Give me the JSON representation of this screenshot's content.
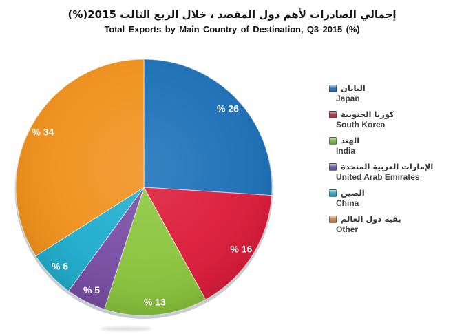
{
  "page": {
    "background": "#FFFFFF"
  },
  "title": {
    "ar": "إجمالي الصادرات لأهم دول المقصد ، خلال الربع الثالث 2015(%)",
    "en": "Total Exports by Main Country of Destination, Q3  2015 (%)"
  },
  "chart_data": {
    "type": "pie",
    "title": "Total Exports by Main Country of Destination, Q3 2015 (%)",
    "title_ar": "إجمالي الصادرات لأهم دول المقصد ، خلال الربع الثالث 2015(%)",
    "categories": [
      "Japan",
      "South Korea",
      "India",
      "United Arab Emirates",
      "China",
      "Other"
    ],
    "categories_ar": [
      "اليابان",
      "كوريا الجنوبية",
      "الهند",
      "الإمارات العربية المتحدة",
      "الصين",
      "بقية دول العالم"
    ],
    "values": [
      26,
      16,
      13,
      5,
      6,
      34
    ],
    "unit": "%",
    "value_labels": [
      "% 26",
      "% 16",
      "% 13",
      "% 5",
      "% 6",
      "% 34"
    ],
    "label_format": "% {value}",
    "value_label_color": "#FFFFFF",
    "colors": [
      "#1E71B8",
      "#DC1E3C",
      "#8CC63F",
      "#7A4FA5",
      "#22AECE",
      "#F0921E"
    ],
    "swatch_colors": [
      "#2F74B4",
      "#AE4050",
      "#7FBA58",
      "#6E66AE",
      "#3FA8C5",
      "#C48A54"
    ],
    "start_angle_deg": 0,
    "direction": "clockwise",
    "legend_position": "right",
    "grid": false
  }
}
